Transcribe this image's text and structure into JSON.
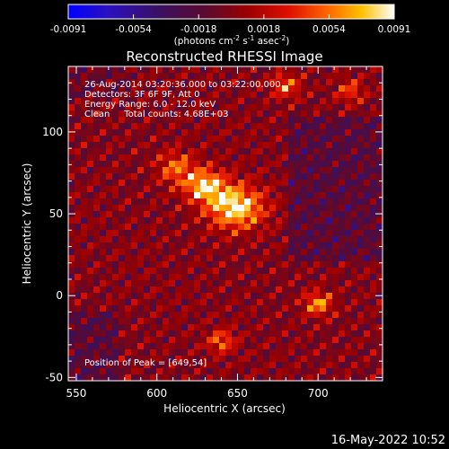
{
  "chart_data": {
    "type": "heatmap",
    "title": "Reconstructed RHESSI Image",
    "xlabel": "Heliocentric X (arcsec)",
    "ylabel": "Heliocentric Y (arcsec)",
    "xlim": [
      545,
      740
    ],
    "ylim": [
      -52,
      140
    ],
    "xticks": [
      550,
      600,
      650,
      700
    ],
    "yticks": [
      -50,
      0,
      50,
      100
    ],
    "colorbar": {
      "range": [
        -0.0091,
        0.0091
      ],
      "ticks": [
        "-0.0091",
        "-0.0054",
        "-0.0018",
        "0.0018",
        "0.0054",
        "0.0091"
      ],
      "label_main": "(photons cm",
      "label_exp1": "-2",
      "label_mid": " s",
      "label_exp2": "-1",
      "label_end": " asec",
      "label_exp3": "-2",
      "label_close": ")"
    },
    "annotations": [
      "26-Aug-2014 03:20:36.000 to 03:22:00.000",
      "Detectors: 3F 6F 9F, Att 0",
      "Energy Range: 6.0 - 12.0 keV",
      "Clean     Total counts: 4.68E+03"
    ],
    "peak_label": "Position of Peak = [649,54]",
    "peak": [
      649,
      54
    ],
    "sources": [
      {
        "x": 649,
        "y": 54,
        "amp": 1.0,
        "sx": 12,
        "sy": 9
      },
      {
        "x": 630,
        "y": 67,
        "amp": 0.85,
        "sx": 9,
        "sy": 7
      },
      {
        "x": 612,
        "y": 78,
        "amp": 0.55,
        "sx": 8,
        "sy": 7
      },
      {
        "x": 700,
        "y": -5,
        "amp": 0.7,
        "sx": 6,
        "sy": 5
      },
      {
        "x": 640,
        "y": -28,
        "amp": 0.55,
        "sx": 6,
        "sy": 5
      },
      {
        "x": 680,
        "y": 128,
        "amp": 0.6,
        "sx": 6,
        "sy": 5
      },
      {
        "x": 720,
        "y": 125,
        "amp": 0.45,
        "sx": 6,
        "sy": 5
      }
    ]
  },
  "footer_date": "16-May-2022 10:52"
}
